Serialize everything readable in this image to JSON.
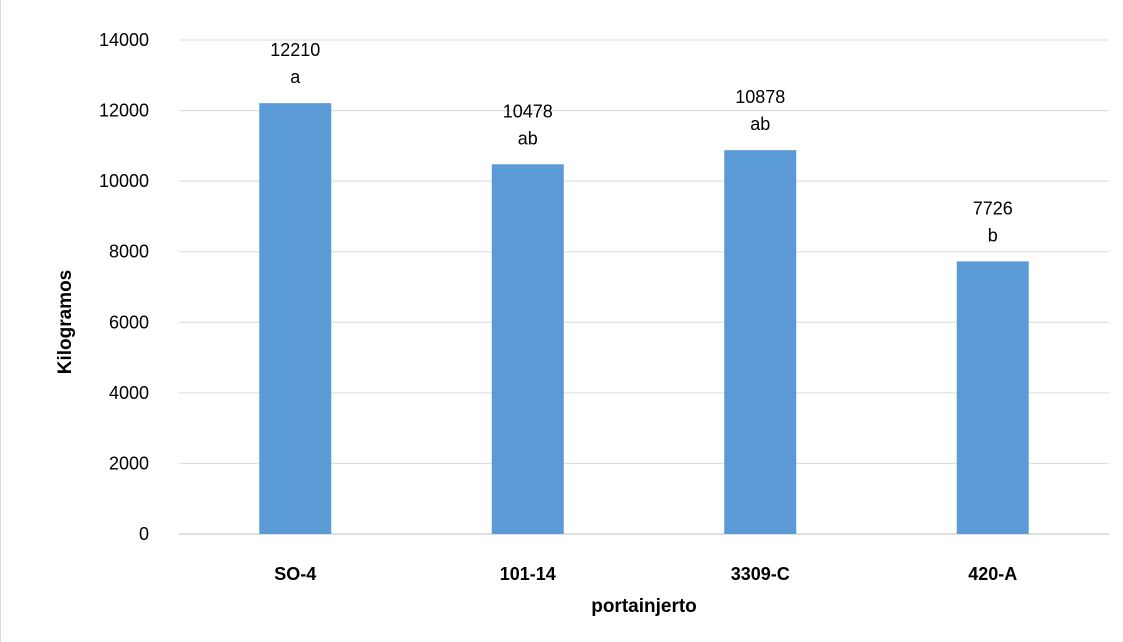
{
  "chart_data": {
    "type": "bar",
    "categories": [
      "SO-4",
      "101-14",
      "3309-C",
      "420-A"
    ],
    "values": [
      12210,
      10478,
      10878,
      7726
    ],
    "value_labels": [
      "12210",
      "10478",
      "10878",
      "7726"
    ],
    "group_letters": [
      "a",
      "ab",
      "ab",
      "b"
    ],
    "title": "",
    "xlabel": "portainjerto",
    "ylabel": "Kilogramos",
    "ylim": [
      0,
      14000
    ],
    "yticks": [
      "0",
      "2000",
      "4000",
      "6000",
      "8000",
      "10000",
      "12000",
      "14000"
    ],
    "grid": true,
    "legend": "none",
    "bar_color": "#5b9bd5"
  }
}
